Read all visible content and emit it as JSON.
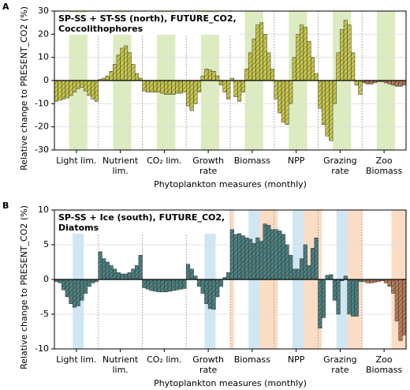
{
  "chart_data": [
    {
      "type": "bar",
      "panel_label": "A",
      "title": "SP-SS + ST-SS (north), FUTURE_CO2,\nCoccolithophores",
      "xlabel": "Phytoplankton measures (monthly)",
      "ylabel": "Relative change to PRESENT_CO2 (%)",
      "categories": [
        "Light lim.",
        "Nutrient\nlim.",
        "CO₂ lim.",
        "Growth\nrate",
        "Biomass",
        "NPP",
        "Grazing\nrate",
        "Zoo\nBiomass"
      ],
      "colors": [
        "#c9c94e",
        "#c9c94e",
        "#c9c94e",
        "#c9c94e",
        "#c9c94e",
        "#c9c94e",
        "#c9c94e",
        "#b8805a"
      ],
      "values": [
        [
          -9,
          -8.5,
          -8,
          -7.5,
          -6.5,
          -5,
          -3.5,
          -3,
          -4.5,
          -6.5,
          -8,
          -9
        ],
        [
          0.5,
          1,
          2,
          4,
          7,
          11,
          14,
          15,
          12,
          7,
          3,
          1
        ],
        [
          -4.5,
          -5,
          -5,
          -5,
          -5,
          -5.5,
          -6,
          -6,
          -6,
          -5.5,
          -5.5,
          -5
        ],
        [
          -11,
          -13,
          -10,
          -5,
          2,
          5,
          4.5,
          4,
          2,
          -2,
          -5,
          -8
        ],
        [
          1,
          -7,
          -9,
          -5,
          5,
          12,
          18,
          24,
          25,
          20,
          12,
          5
        ],
        [
          -8,
          -14,
          -18,
          -19,
          -10,
          10,
          20,
          24,
          23,
          17,
          10,
          3
        ],
        [
          -12,
          -19,
          -24,
          -26,
          -10,
          12,
          22,
          26,
          24,
          12,
          -2,
          -6
        ],
        [
          -1,
          -1.5,
          -1.5,
          -1,
          -0.5,
          -0.5,
          -1,
          -1.5,
          -2,
          -2.5,
          -2.5,
          -2
        ]
      ],
      "ylim": [
        -30,
        30
      ],
      "yticks": [
        -30,
        -20,
        -10,
        0,
        10,
        20,
        30
      ],
      "grid": true
    },
    {
      "type": "bar",
      "panel_label": "B",
      "title": "SP-SS + Ice (south), FUTURE_CO2,\nDiatoms",
      "xlabel": "Phytoplankton measures (monthly)",
      "ylabel": "Relative change to PRESENT_CO2 (%)",
      "categories": [
        "Light lim.",
        "Nutrient\nlim.",
        "CO₂ lim.",
        "Growth\nrate",
        "Biomass",
        "NPP",
        "Grazing\nrate",
        "Zoo\nBiomass"
      ],
      "colors": [
        "#4f8282",
        "#4f8282",
        "#4f8282",
        "#4f8282",
        "#4f8282",
        "#4f8282",
        "#4f8282",
        "#b8805a"
      ],
      "values": [
        [
          -0.3,
          -0.5,
          -1.5,
          -2.5,
          -3.5,
          -4,
          -3.8,
          -3,
          -2,
          -1,
          -0.5,
          -0.3
        ],
        [
          4,
          3,
          2.5,
          2,
          1.5,
          1,
          0.8,
          0.8,
          1,
          1.5,
          2,
          3.5
        ],
        [
          -1.2,
          -1.4,
          -1.6,
          -1.7,
          -1.8,
          -1.8,
          -1.8,
          -1.7,
          -1.6,
          -1.5,
          -1.4,
          -1.3
        ],
        [
          2.2,
          1.5,
          0.5,
          -1,
          -2,
          -3.5,
          -4.2,
          -4.3,
          -2.5,
          -1,
          0.3,
          1
        ],
        [
          7.2,
          6.5,
          6.6,
          6.3,
          6,
          5.8,
          5.2,
          6,
          5.5,
          8,
          7.8,
          7.2
        ],
        [
          7.2,
          7,
          6.5,
          5,
          3.5,
          1.5,
          1.5,
          3,
          5,
          2,
          4.5,
          6
        ],
        [
          -7,
          -5.5,
          0.6,
          0.7,
          -3,
          -5,
          -0.2,
          0.5,
          -5,
          -5.3,
          -5.3,
          -0.3
        ],
        [
          -0.3,
          -0.5,
          -0.5,
          -0.4,
          -0.3,
          -0.2,
          -0.5,
          -1,
          -2,
          -6,
          -8.8,
          -8
        ]
      ],
      "ylim": [
        -10,
        10
      ],
      "yticks": [
        -10,
        -5,
        0,
        5,
        10
      ],
      "grid": true
    }
  ]
}
